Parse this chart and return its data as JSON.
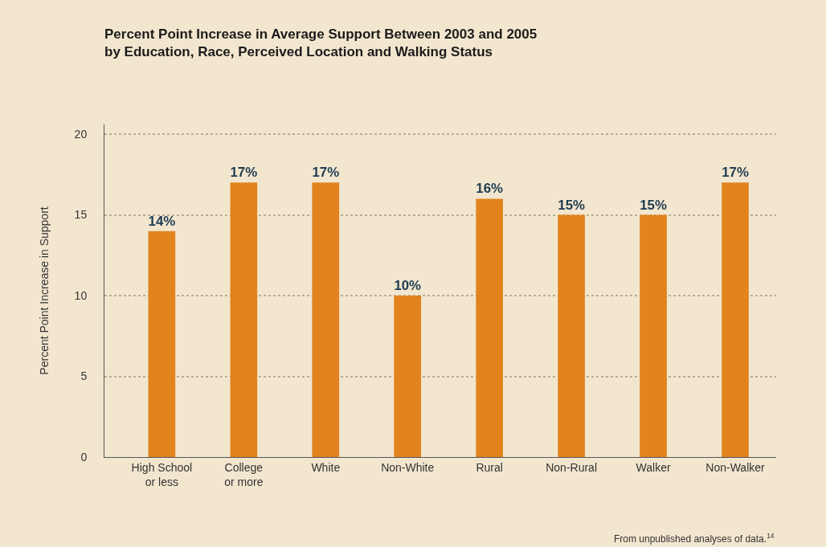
{
  "chart_data": {
    "type": "bar",
    "title": "Percent Point Increase in Average Support Between 2003 and 2005\nby Education, Race, Perceived Location and Walking Status",
    "ylabel": "Percent Point Increase in Support",
    "categories": [
      "High School\nor less",
      "College\nor more",
      "White",
      "Non-White",
      "Rural",
      "Non-Rural",
      "Walker",
      "Non-Walker"
    ],
    "values": [
      14,
      17,
      17,
      10,
      16,
      15,
      15,
      17
    ],
    "value_labels": [
      "14%",
      "17%",
      "17%",
      "10%",
      "16%",
      "15%",
      "15%",
      "17%"
    ],
    "color": "#e2831d",
    "ylim": [
      0,
      20.6
    ],
    "yticks": [
      0,
      5,
      10,
      15,
      20
    ],
    "grid": "y",
    "legend": false,
    "annotations": [
      "From unpublished analyses of data.$^{14}$"
    ]
  }
}
